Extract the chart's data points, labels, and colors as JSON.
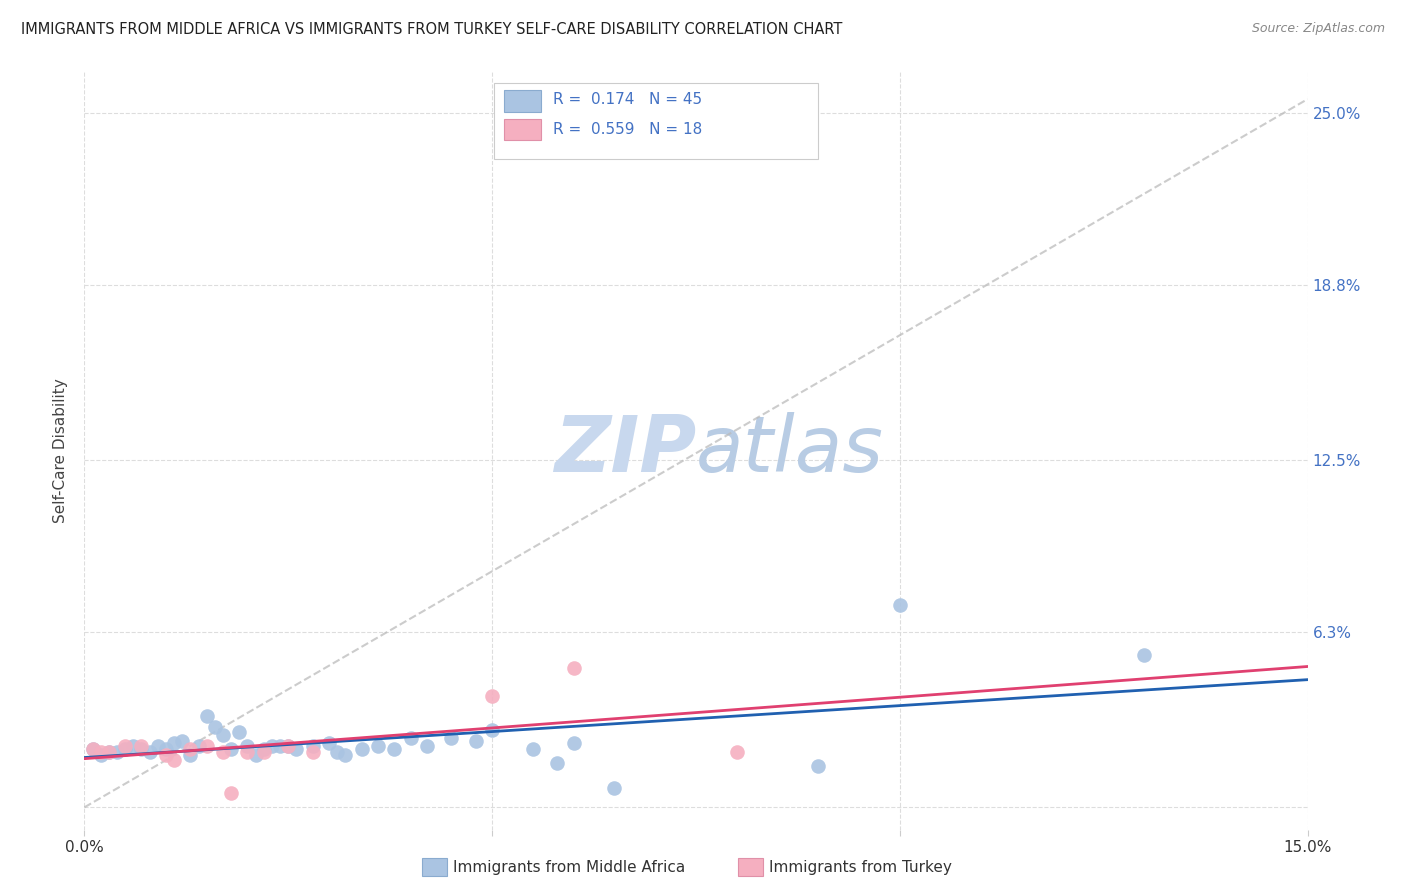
{
  "title": "IMMIGRANTS FROM MIDDLE AFRICA VS IMMIGRANTS FROM TURKEY SELF-CARE DISABILITY CORRELATION CHART",
  "source": "Source: ZipAtlas.com",
  "ylabel": "Self-Care Disability",
  "xlim": [
    0.0,
    0.15
  ],
  "ylim": [
    -0.008,
    0.265
  ],
  "ytick_vals": [
    0.0,
    0.063,
    0.125,
    0.188,
    0.25
  ],
  "ytick_labels": [
    "",
    "6.3%",
    "12.5%",
    "18.8%",
    "25.0%"
  ],
  "xtick_vals": [
    0.0,
    0.05,
    0.1,
    0.15
  ],
  "xtick_labels": [
    "0.0%",
    "",
    "",
    "15.0%"
  ],
  "blue_label": "Immigrants from Middle Africa",
  "pink_label": "Immigrants from Turkey",
  "R_blue": "0.174",
  "N_blue": "45",
  "R_pink": "0.559",
  "N_pink": "18",
  "blue_scatter_color": "#aac4e2",
  "pink_scatter_color": "#f5afc0",
  "blue_line_color": "#2060b0",
  "pink_line_color": "#e04070",
  "dashed_line_color": "#bbbbbb",
  "grid_color": "#dddddd",
  "watermark_color": "#c8d8ee",
  "title_color": "#222222",
  "source_color": "#888888",
  "tick_color": "#4472c4",
  "blue_points": [
    [
      0.001,
      0.021
    ],
    [
      0.002,
      0.019
    ],
    [
      0.003,
      0.02
    ],
    [
      0.004,
      0.02
    ],
    [
      0.005,
      0.021
    ],
    [
      0.006,
      0.022
    ],
    [
      0.007,
      0.021
    ],
    [
      0.008,
      0.02
    ],
    [
      0.009,
      0.022
    ],
    [
      0.01,
      0.021
    ],
    [
      0.011,
      0.023
    ],
    [
      0.012,
      0.024
    ],
    [
      0.013,
      0.019
    ],
    [
      0.014,
      0.022
    ],
    [
      0.015,
      0.033
    ],
    [
      0.016,
      0.029
    ],
    [
      0.017,
      0.026
    ],
    [
      0.018,
      0.021
    ],
    [
      0.019,
      0.027
    ],
    [
      0.02,
      0.022
    ],
    [
      0.021,
      0.019
    ],
    [
      0.022,
      0.021
    ],
    [
      0.023,
      0.022
    ],
    [
      0.024,
      0.022
    ],
    [
      0.025,
      0.022
    ],
    [
      0.026,
      0.021
    ],
    [
      0.028,
      0.022
    ],
    [
      0.03,
      0.023
    ],
    [
      0.031,
      0.02
    ],
    [
      0.032,
      0.019
    ],
    [
      0.034,
      0.021
    ],
    [
      0.036,
      0.022
    ],
    [
      0.038,
      0.021
    ],
    [
      0.04,
      0.025
    ],
    [
      0.042,
      0.022
    ],
    [
      0.045,
      0.025
    ],
    [
      0.048,
      0.024
    ],
    [
      0.05,
      0.028
    ],
    [
      0.055,
      0.021
    ],
    [
      0.058,
      0.016
    ],
    [
      0.06,
      0.023
    ],
    [
      0.065,
      0.007
    ],
    [
      0.09,
      0.015
    ],
    [
      0.1,
      0.073
    ],
    [
      0.13,
      0.055
    ]
  ],
  "pink_points": [
    [
      0.001,
      0.021
    ],
    [
      0.002,
      0.02
    ],
    [
      0.003,
      0.02
    ],
    [
      0.005,
      0.022
    ],
    [
      0.007,
      0.022
    ],
    [
      0.01,
      0.019
    ],
    [
      0.011,
      0.017
    ],
    [
      0.013,
      0.021
    ],
    [
      0.015,
      0.022
    ],
    [
      0.017,
      0.02
    ],
    [
      0.018,
      0.005
    ],
    [
      0.02,
      0.02
    ],
    [
      0.022,
      0.02
    ],
    [
      0.025,
      0.022
    ],
    [
      0.028,
      0.02
    ],
    [
      0.05,
      0.04
    ],
    [
      0.06,
      0.05
    ],
    [
      0.08,
      0.02
    ]
  ],
  "dashed_line_x": [
    0.0,
    0.15
  ],
  "dashed_line_y": [
    0.0,
    0.255
  ]
}
